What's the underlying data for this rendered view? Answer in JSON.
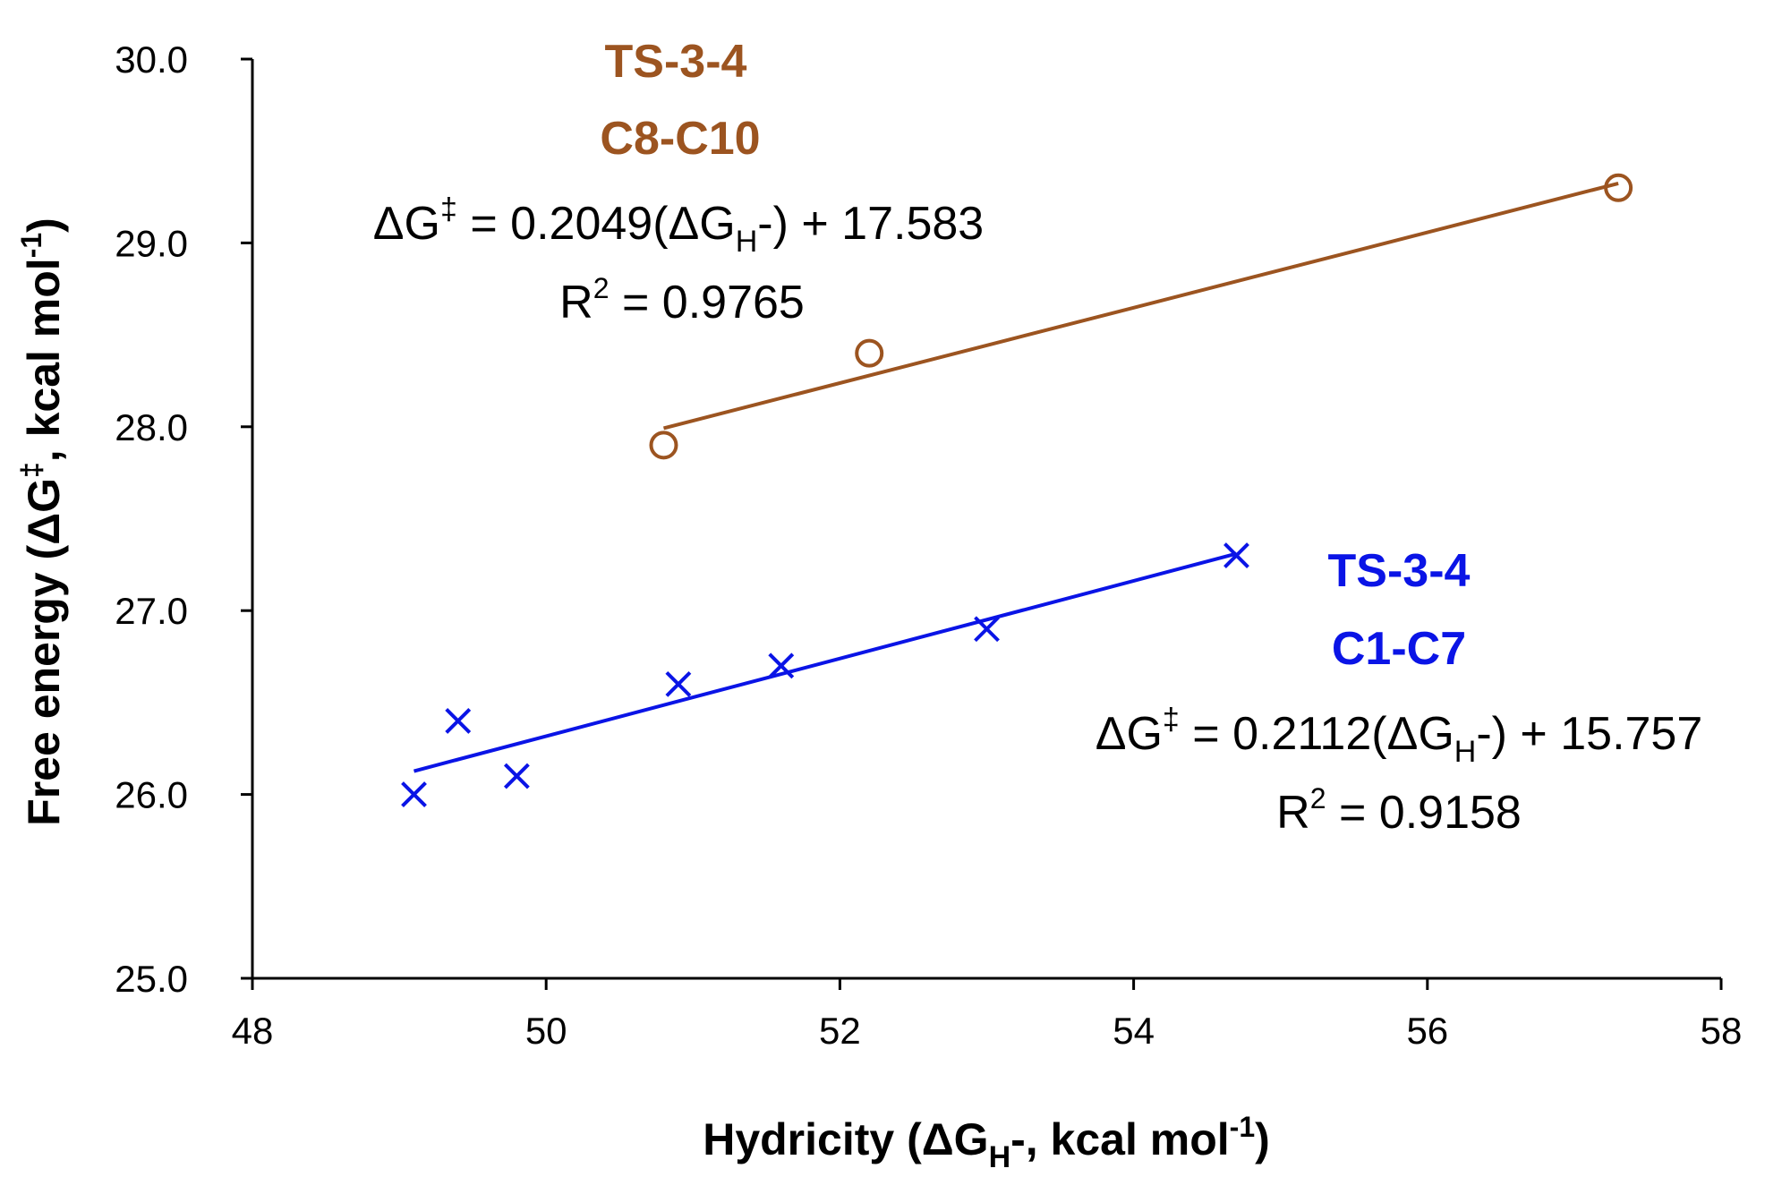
{
  "chart_data": {
    "type": "scatter",
    "title": "",
    "xlabel": {
      "main": "Hydricity (ΔG",
      "sub": "H",
      "after_sub": "-, kcal mol",
      "sup": "-1",
      "end": ")"
    },
    "ylabel": {
      "main": "Free energy (ΔG",
      "sup1": "‡",
      "mid": ", kcal mol",
      "sup2": "-1",
      "end": ")"
    },
    "xlim": [
      48,
      58
    ],
    "ylim": [
      25.0,
      30.0
    ],
    "xticks": [
      "48",
      "50",
      "52",
      "54",
      "56",
      "58"
    ],
    "yticks": [
      "25.0",
      "26.0",
      "27.0",
      "28.0",
      "29.0",
      "30.0"
    ],
    "grid": false,
    "series": [
      {
        "name": "TS-3-4 C8-C10",
        "label_line1": "TS-3-4",
        "label_line2": "C8-C10",
        "color": "#9C5420",
        "marker": "circle",
        "x": [
          50.8,
          52.2,
          57.3
        ],
        "y": [
          27.9,
          28.4,
          29.3
        ],
        "fit": {
          "slope": 0.2049,
          "intercept": 17.583,
          "x_range": [
            50.8,
            57.3
          ]
        },
        "equation": {
          "lhs": "ΔG",
          "sup": "‡",
          "mid": " = 0.2049(ΔG",
          "sub": "H",
          "rhs": "-) + 17.583"
        },
        "r2": {
          "lhs": "R",
          "sup": "2",
          "rhs": " = 0.9765"
        }
      },
      {
        "name": "TS-3-4 C1-C7",
        "label_line1": "TS-3-4",
        "label_line2": "C1-C7",
        "color": "#0A14E6",
        "marker": "x",
        "x": [
          49.1,
          49.4,
          49.8,
          50.9,
          51.6,
          53.0,
          54.7
        ],
        "y": [
          26.0,
          26.4,
          26.1,
          26.6,
          26.7,
          26.9,
          27.3
        ],
        "fit": {
          "slope": 0.2112,
          "intercept": 15.757,
          "x_range": [
            49.1,
            54.7
          ]
        },
        "equation": {
          "lhs": "ΔG",
          "sup": "‡",
          "mid": " = 0.2112(ΔG",
          "sub": "H",
          "rhs": "-) + 15.757"
        },
        "r2": {
          "lhs": "R",
          "sup": "2",
          "rhs": " = 0.9158"
        }
      }
    ]
  }
}
